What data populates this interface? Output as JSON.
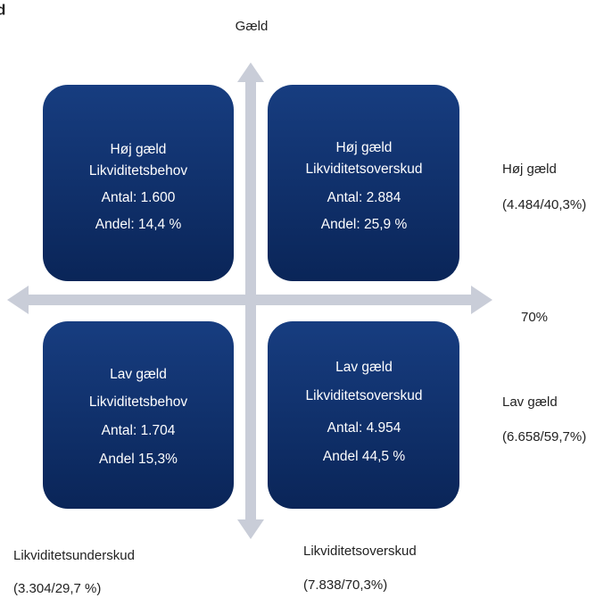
{
  "header": {
    "title": "d",
    "axis_label": "Gæld"
  },
  "quadrants": [
    {
      "lines": [
        "Høj gæld",
        "Likviditetsbehov",
        "Antal: 1.600",
        "Andel: 14,4 %"
      ]
    },
    {
      "lines": [
        "Høj gæld",
        "Likviditetsoverskud",
        "Antal: 2.884",
        "Andel: 25,9 %"
      ]
    },
    {
      "lines": [
        "Lav gæld",
        "Likviditetsbehov",
        "Antal: 1.704",
        "Andel 15,3%"
      ]
    },
    {
      "lines": [
        "Lav gæld",
        "Likviditetsoverskud",
        "Antal: 4.954",
        "Andel 44,5 %"
      ]
    }
  ],
  "right_labels": {
    "high": "Høj gæld",
    "high_total": "(4.484/40,3%)",
    "threshold": "70%",
    "low": "Lav gæld",
    "low_total": "(6.658/59,7%)"
  },
  "bottom_labels": {
    "left": "Likviditetsunderskud",
    "left_total": "(3.304/29,7 %)",
    "right": "Likviditetsoverskud",
    "right_total": "(7.838/70,3%)"
  }
}
